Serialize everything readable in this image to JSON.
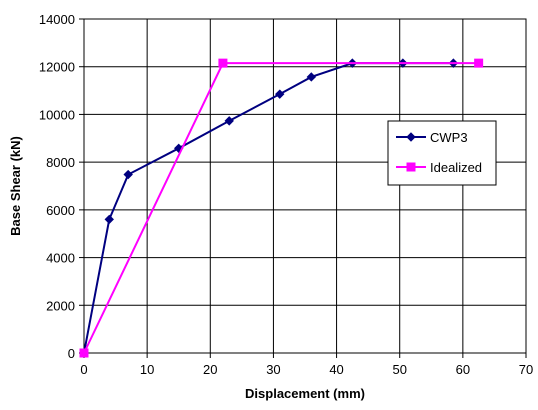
{
  "chart_data": {
    "type": "line",
    "title": "",
    "xlabel": "Displacement (mm)",
    "ylabel": "Base Shear (kN)",
    "xlim": [
      0,
      70
    ],
    "ylim": [
      0,
      14000
    ],
    "x_ticks": [
      0,
      10,
      20,
      30,
      40,
      50,
      60,
      70
    ],
    "y_ticks": [
      0,
      2000,
      4000,
      6000,
      8000,
      10000,
      12000,
      14000
    ],
    "grid": true,
    "legend_position": "right",
    "series": [
      {
        "name": "CWP3",
        "color": "#000080",
        "marker": "diamond",
        "x": [
          0,
          4,
          7,
          15,
          23,
          31,
          36,
          42.5,
          50.5,
          58.5
        ],
        "y": [
          0,
          5600,
          7480,
          8580,
          9730,
          10850,
          11570,
          12150,
          12150,
          12150
        ]
      },
      {
        "name": "Idealized",
        "color": "#FF00FF",
        "marker": "square",
        "x": [
          0,
          22,
          62.5
        ],
        "y": [
          0,
          12150,
          12150
        ]
      }
    ]
  }
}
